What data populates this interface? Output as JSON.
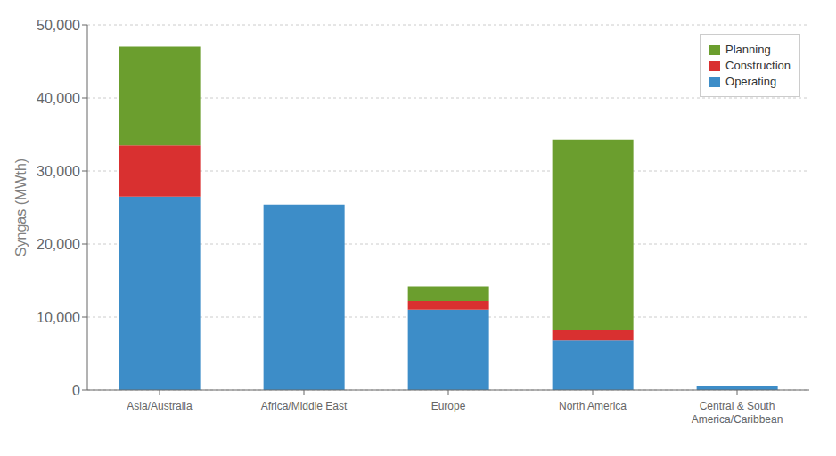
{
  "chart_data": {
    "type": "bar",
    "stacked": true,
    "ylabel": "Syngas (MWth)",
    "categories": [
      "Asia/Australia",
      "Africa/Middle East",
      "Europe",
      "North America",
      "Central & South\nAmerica/Caribbean"
    ],
    "series": [
      {
        "name": "Operating",
        "color": "#3d8dc8",
        "values": [
          26500,
          25400,
          11000,
          6800,
          600
        ]
      },
      {
        "name": "Construction",
        "color": "#d93030",
        "values": [
          7000,
          0,
          1200,
          1500,
          0
        ]
      },
      {
        "name": "Planning",
        "color": "#6b9e2e",
        "values": [
          13500,
          0,
          2000,
          26000,
          0
        ]
      }
    ],
    "ylim": [
      0,
      50000
    ],
    "yticks": [
      0,
      {
        "value": 10000,
        "label": "10,000"
      },
      {
        "value": 20000,
        "label": "20,000"
      },
      {
        "value": 30000,
        "label": "30,000"
      },
      {
        "value": 40000,
        "label": "40,000"
      },
      {
        "value": 50000,
        "label": "50,000"
      }
    ],
    "grid": true,
    "legend": "upper right"
  }
}
